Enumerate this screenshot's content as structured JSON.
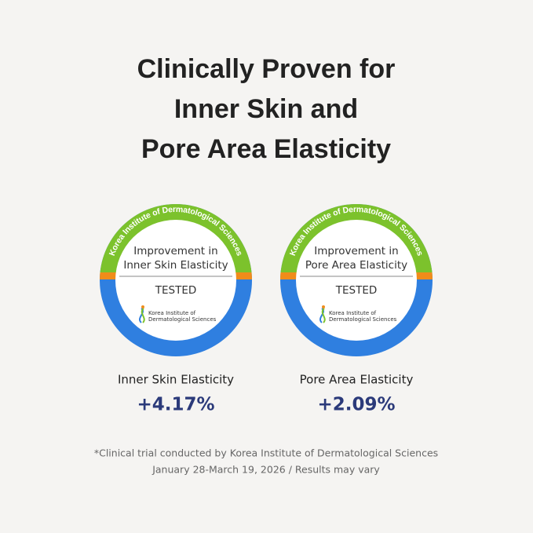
{
  "title": [
    "Clinically Proven for",
    "Inner Skin and",
    "Pore Area Elasticity"
  ],
  "badges": [
    {
      "ring_text": "Korea Institute of Dermatological Sciences",
      "label": [
        "Improvement in",
        "Inner Skin Elasticity"
      ],
      "status": "TESTED",
      "logo_text": [
        "Korea Institute of",
        "Dermatological Sciences"
      ],
      "metric": "Inner Skin Elasticity",
      "result": "+4.17%"
    },
    {
      "ring_text": "Korea Institute of Dermatological Sciences",
      "label": [
        "Improvement in",
        "Pore Area Elasticity"
      ],
      "status": "TESTED",
      "logo_text": [
        "Korea Institute of",
        "Dermatological Sciences"
      ],
      "metric": "Pore Area Elasticity",
      "result": "+2.09%"
    }
  ],
  "footnote": [
    "*Clinical trial conducted by Korea Institute of Dermatological Sciences",
    "January 28-March 19, 2026 / Results may vary"
  ]
}
